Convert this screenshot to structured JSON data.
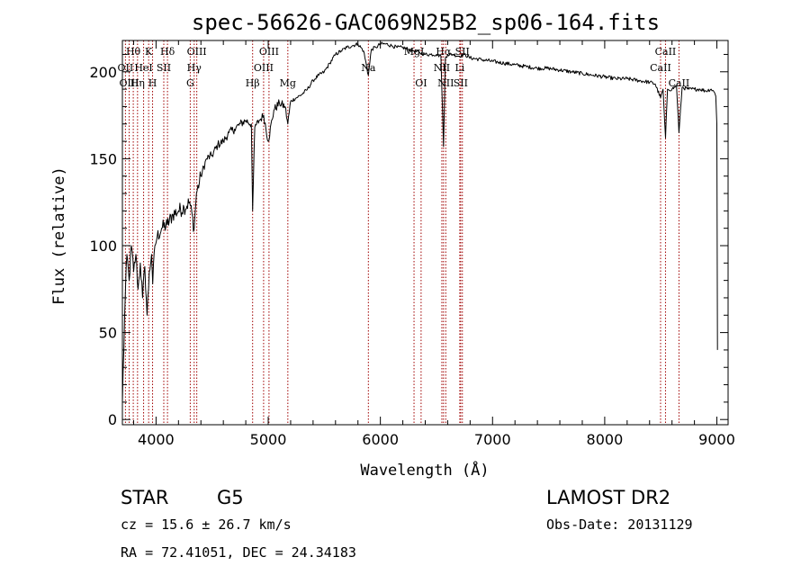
{
  "chart_data": {
    "type": "line",
    "title": "spec-56626-GAC069N25B2_sp06-164.fits",
    "xlabel": "Wavelength (Å)",
    "ylabel": "Flux (relative)",
    "xlim": [
      3700,
      9100
    ],
    "ylim": [
      -3,
      218
    ],
    "xticks": [
      4000,
      5000,
      6000,
      7000,
      8000,
      9000
    ],
    "yticks": [
      0,
      50,
      100,
      150,
      200
    ],
    "xtick_labels": [
      "4000",
      "5000",
      "6000",
      "7000",
      "8000",
      "9000"
    ],
    "ytick_labels": [
      "0",
      "50",
      "100",
      "150",
      "200"
    ],
    "series": [
      {
        "x": [
          3700,
          3720,
          3740,
          3760,
          3780,
          3800,
          3820,
          3840,
          3860,
          3880,
          3900,
          3920,
          3940,
          3960,
          3970,
          3990,
          4010,
          4050,
          4100,
          4150,
          4200,
          4250,
          4300,
          4340,
          4360,
          4400,
          4450,
          4500,
          4550,
          4600,
          4650,
          4700,
          4750,
          4800,
          4850,
          4861,
          4880,
          4920,
          4960,
          5000,
          5050,
          5100,
          5150,
          5175,
          5200,
          5250,
          5300,
          5350,
          5400,
          5450,
          5500,
          5550,
          5600,
          5650,
          5700,
          5750,
          5800,
          5850,
          5893,
          5920,
          5960,
          6000,
          6050,
          6100,
          6150,
          6200,
          6250,
          6300,
          6350,
          6400,
          6450,
          6500,
          6540,
          6563,
          6580,
          6600,
          6650,
          6700,
          6750,
          6800,
          6900,
          7000,
          7100,
          7200,
          7300,
          7400,
          7500,
          7600,
          7700,
          7800,
          7900,
          8000,
          8100,
          8200,
          8300,
          8400,
          8450,
          8498,
          8520,
          8542,
          8560,
          8600,
          8640,
          8662,
          8690,
          8750,
          8800,
          8850,
          8900,
          8950,
          8980,
          8990,
          9000,
          9005
        ],
        "y": [
          10,
          60,
          95,
          80,
          100,
          85,
          95,
          75,
          90,
          70,
          88,
          60,
          85,
          95,
          78,
          100,
          105,
          110,
          112,
          118,
          120,
          122,
          125,
          110,
          130,
          140,
          150,
          152,
          158,
          160,
          165,
          167,
          170,
          172,
          170,
          120,
          168,
          172,
          175,
          160,
          178,
          182,
          180,
          170,
          183,
          185,
          187,
          190,
          195,
          198,
          200,
          205,
          210,
          212,
          214,
          215,
          216,
          212,
          198,
          213,
          214,
          216,
          216,
          215,
          214,
          214,
          213,
          212,
          211,
          210,
          210,
          210,
          209,
          157,
          208,
          210,
          210,
          209,
          210,
          208,
          207,
          206,
          205,
          204,
          203,
          202,
          202,
          201,
          200,
          199,
          198,
          197,
          196,
          196,
          195,
          194,
          193,
          185,
          190,
          162,
          190,
          190,
          192,
          165,
          191,
          190,
          190,
          190,
          189,
          190,
          188,
          186,
          170,
          40
        ]
      }
    ],
    "line_marks": [
      {
        "label": "Hθ",
        "x": 3797,
        "row": 0
      },
      {
        "label": "K",
        "x": 3934,
        "row": 0
      },
      {
        "label": "Hδ",
        "x": 4102,
        "row": 0
      },
      {
        "label": "OIII",
        "x": 4363,
        "row": 0
      },
      {
        "label": "OIII",
        "x": 5007,
        "row": 0
      },
      {
        "label": "MgI",
        "x": 6300,
        "row": 0
      },
      {
        "label": "Hα",
        "x": 6563,
        "row": 0
      },
      {
        "label": "SII",
        "x": 6731,
        "row": 0
      },
      {
        "label": "CaII",
        "x": 8542,
        "row": 0
      },
      {
        "label": "OII",
        "x": 3727,
        "row": 1
      },
      {
        "label": "HeI",
        "x": 3889,
        "row": 1
      },
      {
        "label": "SII",
        "x": 4069,
        "row": 1
      },
      {
        "label": "Hγ",
        "x": 4340,
        "row": 1
      },
      {
        "label": "OIII",
        "x": 4959,
        "row": 1
      },
      {
        "label": "Na",
        "x": 5893,
        "row": 1
      },
      {
        "label": "NII",
        "x": 6548,
        "row": 1
      },
      {
        "label": "Li",
        "x": 6708,
        "row": 1
      },
      {
        "label": "CaII",
        "x": 8498,
        "row": 1
      },
      {
        "label": "OIII",
        "x": 3760,
        "row": 2
      },
      {
        "label": "Hη",
        "x": 3835,
        "row": 2
      },
      {
        "label": "H",
        "x": 3969,
        "row": 2
      },
      {
        "label": "G",
        "x": 4305,
        "row": 2
      },
      {
        "label": "Hβ",
        "x": 4861,
        "row": 2
      },
      {
        "label": "Mg",
        "x": 5175,
        "row": 2
      },
      {
        "label": "OI",
        "x": 6363,
        "row": 2
      },
      {
        "label": "NII",
        "x": 6583,
        "row": 2
      },
      {
        "label": "SII",
        "x": 6716,
        "row": 2
      },
      {
        "label": "CaII",
        "x": 8662,
        "row": 2
      }
    ],
    "line_color": "#a00000"
  },
  "info": {
    "class": "STAR",
    "subclass": "G5",
    "survey": "LAMOST DR2",
    "cz": "cz = 15.6 ± 26.7 km/s",
    "obs_date": "Obs-Date: 20131129",
    "radec": "RA =  72.41051, DEC =  24.34183"
  }
}
